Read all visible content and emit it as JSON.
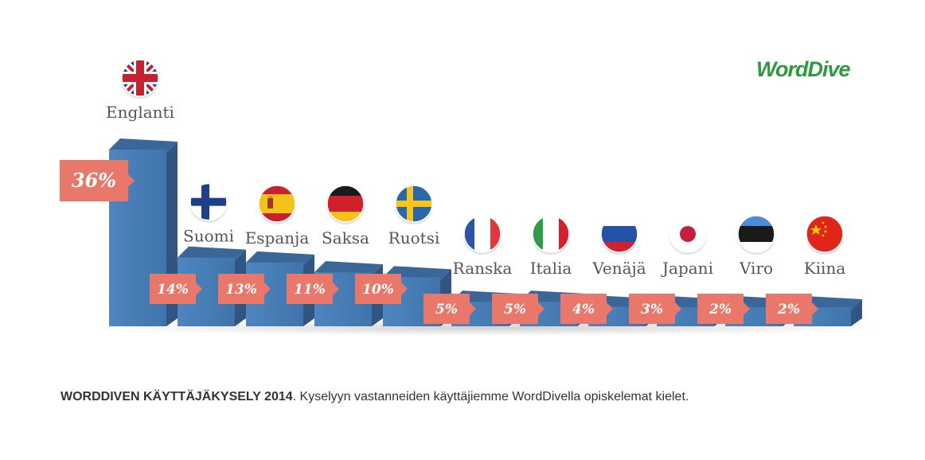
{
  "brand": {
    "logo_text": "WordDive",
    "logo_color": "#2e9a3f"
  },
  "caption": {
    "bold": "WORDDIVEN KÄYTTÄJÄKYSELY 2014",
    "text": ". Kyselyyn vastanneiden käyttäjiemme WordDivella opiskelemat kielet."
  },
  "colors": {
    "bar_front": "#4a7fb5",
    "bar_top": "#3a6797",
    "bar_side": "#2f5580",
    "label_bg": "#e9786a"
  },
  "chart_data": {
    "type": "bar",
    "title": "",
    "xlabel": "",
    "ylabel": "",
    "ylim": [
      0,
      36
    ],
    "grid": false,
    "categories": [
      "Englanti",
      "Suomi",
      "Espanja",
      "Saksa",
      "Ruotsi",
      "Ranska",
      "Italia",
      "Venäjä",
      "Japani",
      "Viro",
      "Kiina"
    ],
    "values": [
      36,
      14,
      13,
      11,
      10,
      5,
      5,
      4,
      3,
      2,
      2
    ],
    "value_labels": [
      "36%",
      "14%",
      "13%",
      "11%",
      "10%",
      "5%",
      "5%",
      "4%",
      "3%",
      "2%",
      "2%"
    ],
    "flags": [
      "uk-flag-icon",
      "finland-flag-icon",
      "spain-flag-icon",
      "germany-flag-icon",
      "sweden-flag-icon",
      "france-flag-icon",
      "italy-flag-icon",
      "russia-flag-icon",
      "japan-flag-icon",
      "estonia-flag-icon",
      "china-flag-icon"
    ]
  }
}
